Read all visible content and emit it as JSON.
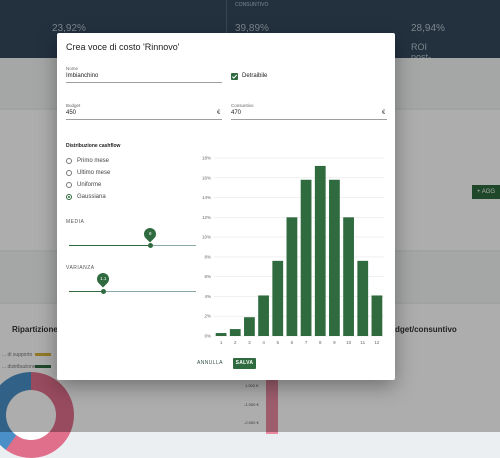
{
  "background": {
    "kpis": [
      {
        "value": "23,92%",
        "sub": ""
      },
      {
        "value": "39,89%",
        "sub": "",
        "overline": "CONSUNTIVO"
      },
      {
        "value": "28,94%",
        "sub": "ROI post-imposte"
      }
    ],
    "add_button": "+ AGG",
    "section_left": "Ripartizione p",
    "section_right": "dget/consuntivo",
    "legend_items": [
      "... di supporto",
      "... distribuzione"
    ],
    "y_axis_labels": [
      "1.000 €",
      "-1.000 €",
      "-2.000 €"
    ]
  },
  "dialog": {
    "title": "Crea voce di costo 'Rinnovo'",
    "nome": {
      "label": "Nome",
      "value": "Imbianchino"
    },
    "detraibile": {
      "label": "Detraibile",
      "checked": true
    },
    "budget": {
      "label": "Budget",
      "value": "450",
      "suffix": "€"
    },
    "consuntivo": {
      "label": "Consuntivo",
      "value": "470",
      "suffix": "€"
    },
    "distribution": {
      "title": "Distribuzione cashflow",
      "options": [
        "Primo mese",
        "Ultimo mese",
        "Uniforme",
        "Gaussiana"
      ],
      "selected": "Gaussiana"
    },
    "media": {
      "label": "MEDIA",
      "value": "8",
      "level": 0.64
    },
    "varianza": {
      "label": "VARIANZA",
      "value": "1.1",
      "level": 0.27
    },
    "actions": {
      "cancel": "ANNULLA",
      "save": "SALVA"
    }
  },
  "chart_data": {
    "type": "bar",
    "categories": [
      "1",
      "2",
      "3",
      "4",
      "5",
      "6",
      "7",
      "8",
      "9",
      "10",
      "11",
      "12"
    ],
    "values": [
      0.3,
      0.7,
      1.9,
      4.1,
      7.6,
      12.0,
      15.8,
      17.2,
      15.8,
      12.0,
      7.6,
      4.1
    ],
    "ylim": [
      0,
      18
    ],
    "y_ticks": [
      "0%",
      "2%",
      "4%",
      "6%",
      "8%",
      "10%",
      "12%",
      "14%",
      "16%",
      "18%"
    ],
    "bar_color": "#2f6b3f"
  }
}
